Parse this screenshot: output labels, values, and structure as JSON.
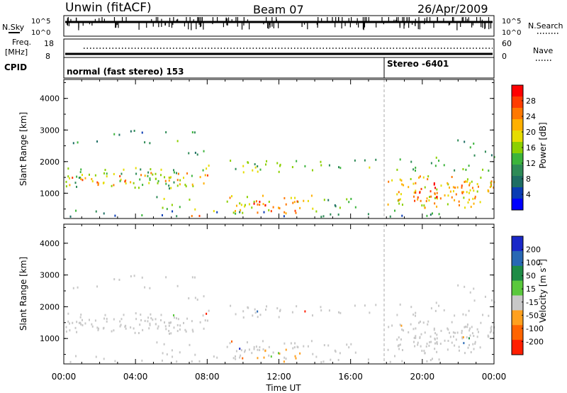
{
  "header": {
    "station": "Unwin (fitACF)",
    "beam": "Beam 07",
    "date": "26/Apr/2009"
  },
  "status_panels": {
    "nsky_label": "N.Sky",
    "nsky_ticks": [
      "10^5",
      "10^0"
    ],
    "nsearch_label": "N.Search",
    "nsearch_ticks": [
      "10^5",
      "10^0"
    ],
    "freq_label": "Freq.",
    "freq_unit": "[MHz]",
    "freq_ticks": [
      "18",
      "8"
    ],
    "nave_label": "Nave",
    "nave_ticks": [
      "60",
      "0"
    ],
    "cpid_label": "CPID",
    "cpid_segments": [
      {
        "text": "normal (fast stereo) 153",
        "start_hour": 0
      },
      {
        "text": "Stereo -6401",
        "start_hour": 18
      }
    ]
  },
  "chart_data": [
    {
      "type": "heatmap",
      "name": "power",
      "ylabel": "Slant Range [km]",
      "yticks": [
        1000,
        2000,
        3000,
        4000
      ],
      "ylim": [
        200,
        4600
      ],
      "xlim_hours": [
        0,
        24
      ],
      "colorbar": {
        "label": "Power [dB]",
        "ticks": [
          "28",
          "24",
          "20",
          "16",
          "12",
          "8",
          "4"
        ],
        "colors": [
          "#ff0000",
          "#ff3c00",
          "#ff7800",
          "#ffb000",
          "#e6dc00",
          "#8cd000",
          "#3cb43c",
          "#2e8b57",
          "#1e6e64",
          "#0a3cb4",
          "#0000ff"
        ]
      }
    },
    {
      "type": "heatmap",
      "name": "velocity",
      "ylabel": "Slant Range [km]",
      "yticks": [
        1000,
        2000,
        3000,
        4000
      ],
      "ylim": [
        200,
        4600
      ],
      "xlim_hours": [
        0,
        24
      ],
      "colorbar": {
        "label": "Velocity [m s",
        "label_superscript": "-1",
        "label_close": "]",
        "ticks": [
          "200",
          "100",
          "50",
          "15",
          "-15",
          "-50",
          "-100",
          "-200"
        ],
        "colors": [
          "#1a28c8",
          "#2868b4",
          "#1e8c46",
          "#5ac83c",
          "#c8c8c8",
          "#ffa01e",
          "#ff6400",
          "#ff1e00"
        ]
      }
    }
  ],
  "xaxis": {
    "label": "Time UT",
    "ticks": [
      "00:00",
      "04:00",
      "08:00",
      "12:00",
      "16:00",
      "20:00",
      "00:00"
    ]
  }
}
